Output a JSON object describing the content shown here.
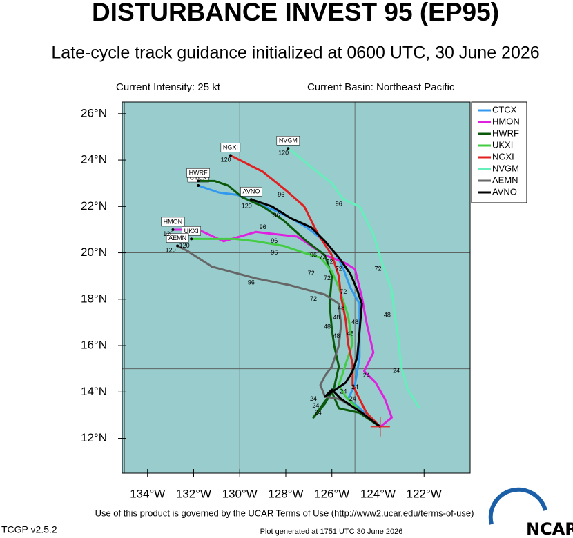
{
  "chart_data": {
    "type": "line",
    "title": "DISTURBANCE INVEST 95 (EP95)",
    "subtitle": "Late-cycle track guidance initialized at 0600 UTC, 30 June 2026",
    "intensity": "Current Intensity: 25 kt",
    "basin": "Current Basin: Northeast Pacific",
    "terms": "Use of this product is governed by the UCAR Terms of Use (http://www2.ucar.edu/terms-of-use)",
    "version": "TCGP v2.5.2",
    "generated": "Plot generated at 1751 UTC  30 June 2026",
    "logo": "NCAR",
    "xlim": [
      -135.1,
      -120
    ],
    "ylim": [
      10.5,
      26.5
    ],
    "xticks": [
      {
        "value": -134,
        "label": "134°W"
      },
      {
        "value": -132,
        "label": "132°W"
      },
      {
        "value": -130,
        "label": "130°W"
      },
      {
        "value": -128,
        "label": "128°W"
      },
      {
        "value": -126,
        "label": "126°W"
      },
      {
        "value": -124,
        "label": "124°W"
      },
      {
        "value": -122,
        "label": "122°W"
      }
    ],
    "yticks": [
      {
        "value": 12,
        "label": "12°N"
      },
      {
        "value": 14,
        "label": "14°N"
      },
      {
        "value": 16,
        "label": "16°N"
      },
      {
        "value": 18,
        "label": "18°N"
      },
      {
        "value": 20,
        "label": "20°N"
      },
      {
        "value": 22,
        "label": "22°N"
      },
      {
        "value": 24,
        "label": "24°N"
      },
      {
        "value": 26,
        "label": "26°N"
      }
    ],
    "xgrid": [
      -135,
      -130,
      -125
    ],
    "ygrid": [
      15,
      20,
      25
    ],
    "background": "#99cccc",
    "legend": "right",
    "start": {
      "x": -123.9,
      "y": 12.5,
      "color": "#e02020"
    },
    "series": [
      {
        "name": "CTCX",
        "color": "#3399ee",
        "x": [
          -123.9,
          -124.8,
          -125.3,
          -125.0,
          -124.8,
          -124.8,
          -124.8,
          -125.2,
          -125.5,
          -125.8,
          -126.3,
          -127.1,
          -127.8,
          -128.4,
          -129.2,
          -130.1,
          -130.9,
          -131.8
        ],
        "values": [
          12.5,
          13.3,
          13.7,
          14.3,
          15.5,
          16.6,
          17.8,
          18.5,
          19.3,
          19.9,
          20.5,
          21.1,
          21.5,
          21.8,
          22.1,
          22.5,
          22.6,
          22.9
        ]
      },
      {
        "name": "HMON",
        "color": "#e020e0",
        "x": [
          -123.9,
          -123.4,
          -123.7,
          -124.1,
          -124.6,
          -124.2,
          -124.5,
          -124.7,
          -125.0,
          -125.5,
          -126.3,
          -127.5,
          -129.3,
          -130.7,
          -131.8,
          -132.9
        ],
        "values": [
          12.5,
          12.9,
          13.7,
          14.4,
          14.9,
          15.7,
          17.0,
          18.1,
          19.3,
          19.6,
          19.9,
          20.7,
          20.9,
          20.5,
          21.0,
          21.0
        ]
      },
      {
        "name": "HWRF",
        "color": "#0b5a0b",
        "x": [
          -123.9,
          -124.8,
          -125.7,
          -126.0,
          -126.8,
          -126.3,
          -125.9,
          -125.7,
          -125.9,
          -126.0,
          -126.1,
          -126.0,
          -126.3,
          -127.1,
          -128.1,
          -129.0,
          -129.9,
          -130.5,
          -131.1,
          -131.8
        ],
        "values": [
          12.5,
          13.1,
          13.3,
          14.0,
          12.9,
          13.5,
          14.2,
          15.1,
          16.0,
          16.7,
          17.8,
          19.0,
          19.9,
          20.5,
          21.4,
          22.0,
          22.4,
          22.9,
          23.1,
          23.1
        ]
      },
      {
        "name": "UKXI",
        "color": "#44cc44",
        "x": [
          -123.9,
          -124.7,
          -125.4,
          -125.7,
          -125.4,
          -125.1,
          -125.3,
          -125.7,
          -126.0,
          -126.5,
          -127.2,
          -128.1,
          -129.3,
          -130.2,
          -132.0,
          -132.1
        ],
        "values": [
          12.5,
          13.1,
          13.8,
          14.3,
          15.2,
          16.1,
          17.3,
          18.5,
          19.2,
          19.8,
          20.0,
          20.3,
          20.5,
          20.6,
          20.6,
          20.6
        ]
      },
      {
        "name": "NGXI",
        "color": "#e02020",
        "x": [
          -123.9,
          -124.5,
          -124.8,
          -125.1,
          -125.1,
          -125.3,
          -125.4,
          -125.6,
          -125.7,
          -126.0,
          -126.6,
          -127.2,
          -128.0,
          -129.0,
          -130.2,
          -130.4
        ],
        "values": [
          12.5,
          13.1,
          13.7,
          14.3,
          15.2,
          16.1,
          17.1,
          18.1,
          19.0,
          19.9,
          20.8,
          22.0,
          22.7,
          23.5,
          24.1,
          24.2
        ]
      },
      {
        "name": "NVGM",
        "color": "#66eebb",
        "x": [
          -122.2,
          -122.7,
          -123.0,
          -123.1,
          -123.3,
          -123.4,
          -123.8,
          -124.2,
          -124.8,
          -125.5,
          -126.0,
          -126.9,
          -127.5,
          -127.9
        ],
        "values": [
          13.3,
          14.1,
          15.1,
          16.2,
          17.5,
          18.4,
          19.5,
          20.8,
          22.0,
          22.3,
          23.0,
          23.7,
          24.2,
          24.5
        ]
      },
      {
        "name": "AEMN",
        "color": "#666666",
        "x": [
          -123.9,
          -124.8,
          -125.7,
          -126.3,
          -126.5,
          -126.3,
          -126.0,
          -125.7,
          -125.6,
          -125.7,
          -126.3,
          -127.8,
          -129.3,
          -131.2,
          -132.3,
          -132.7
        ],
        "values": [
          12.5,
          13.2,
          13.7,
          13.8,
          14.3,
          14.7,
          15.1,
          16.0,
          16.9,
          17.8,
          18.2,
          18.6,
          18.9,
          19.4,
          20.1,
          20.3
        ]
      },
      {
        "name": "AVNO",
        "color": "#000000",
        "x": [
          -123.9,
          -124.7,
          -125.6,
          -126.0,
          -126.3,
          -125.4,
          -125.1,
          -124.9,
          -124.8,
          -124.7,
          -124.9,
          -125.2,
          -125.7,
          -126.3,
          -126.9,
          -127.8,
          -128.6,
          -129.5
        ],
        "values": [
          12.5,
          13.1,
          13.7,
          14.1,
          13.8,
          14.4,
          14.9,
          15.5,
          16.6,
          17.8,
          18.4,
          19.1,
          19.8,
          20.5,
          21.1,
          21.5,
          22.0,
          22.3
        ]
      }
    ],
    "hour_labels": [
      {
        "text": "120",
        "x": -128.1,
        "y": 24.3
      },
      {
        "text": "120",
        "x": -130.6,
        "y": 24.0
      },
      {
        "text": "120",
        "x": -129.7,
        "y": 22.0
      },
      {
        "text": "120",
        "x": -133.1,
        "y": 20.8
      },
      {
        "text": "120",
        "x": -132.4,
        "y": 20.3
      },
      {
        "text": "120",
        "x": -133.0,
        "y": 20.1
      },
      {
        "text": "96",
        "x": -128.2,
        "y": 22.5
      },
      {
        "text": "96",
        "x": -125.7,
        "y": 22.1
      },
      {
        "text": "96",
        "x": -129.0,
        "y": 21.1
      },
      {
        "text": "96",
        "x": -128.4,
        "y": 21.6
      },
      {
        "text": "96",
        "x": -128.5,
        "y": 20.5
      },
      {
        "text": "96",
        "x": -128.5,
        "y": 20.0
      },
      {
        "text": "96",
        "x": -129.5,
        "y": 18.7
      },
      {
        "text": "96",
        "x": -126.8,
        "y": 19.9
      },
      {
        "text": "72",
        "x": -126.4,
        "y": 19.8
      },
      {
        "text": "72",
        "x": -126.1,
        "y": 19.6
      },
      {
        "text": "72",
        "x": -125.7,
        "y": 19.3
      },
      {
        "text": "72",
        "x": -124.0,
        "y": 19.3
      },
      {
        "text": "72",
        "x": -126.9,
        "y": 19.1
      },
      {
        "text": "72",
        "x": -126.2,
        "y": 18.9
      },
      {
        "text": "72",
        "x": -125.5,
        "y": 18.3
      },
      {
        "text": "72",
        "x": -126.8,
        "y": 18.0
      },
      {
        "text": "48",
        "x": -125.6,
        "y": 17.6
      },
      {
        "text": "48",
        "x": -126.2,
        "y": 16.8
      },
      {
        "text": "48",
        "x": -125.8,
        "y": 16.4
      },
      {
        "text": "48",
        "x": -125.2,
        "y": 16.5
      },
      {
        "text": "48",
        "x": -125.0,
        "y": 17.0
      },
      {
        "text": "48",
        "x": -123.6,
        "y": 17.3
      },
      {
        "text": "48",
        "x": -125.8,
        "y": 17.2
      },
      {
        "text": "24",
        "x": -123.2,
        "y": 14.9
      },
      {
        "text": "24",
        "x": -126.8,
        "y": 13.7
      },
      {
        "text": "24",
        "x": -126.7,
        "y": 13.4
      },
      {
        "text": "24",
        "x": -126.6,
        "y": 13.1
      },
      {
        "text": "24",
        "x": -125.5,
        "y": 14.0
      },
      {
        "text": "24",
        "x": -125.1,
        "y": 13.7
      },
      {
        "text": "24",
        "x": -125.0,
        "y": 14.2
      },
      {
        "text": "24",
        "x": -124.5,
        "y": 14.7
      }
    ]
  }
}
